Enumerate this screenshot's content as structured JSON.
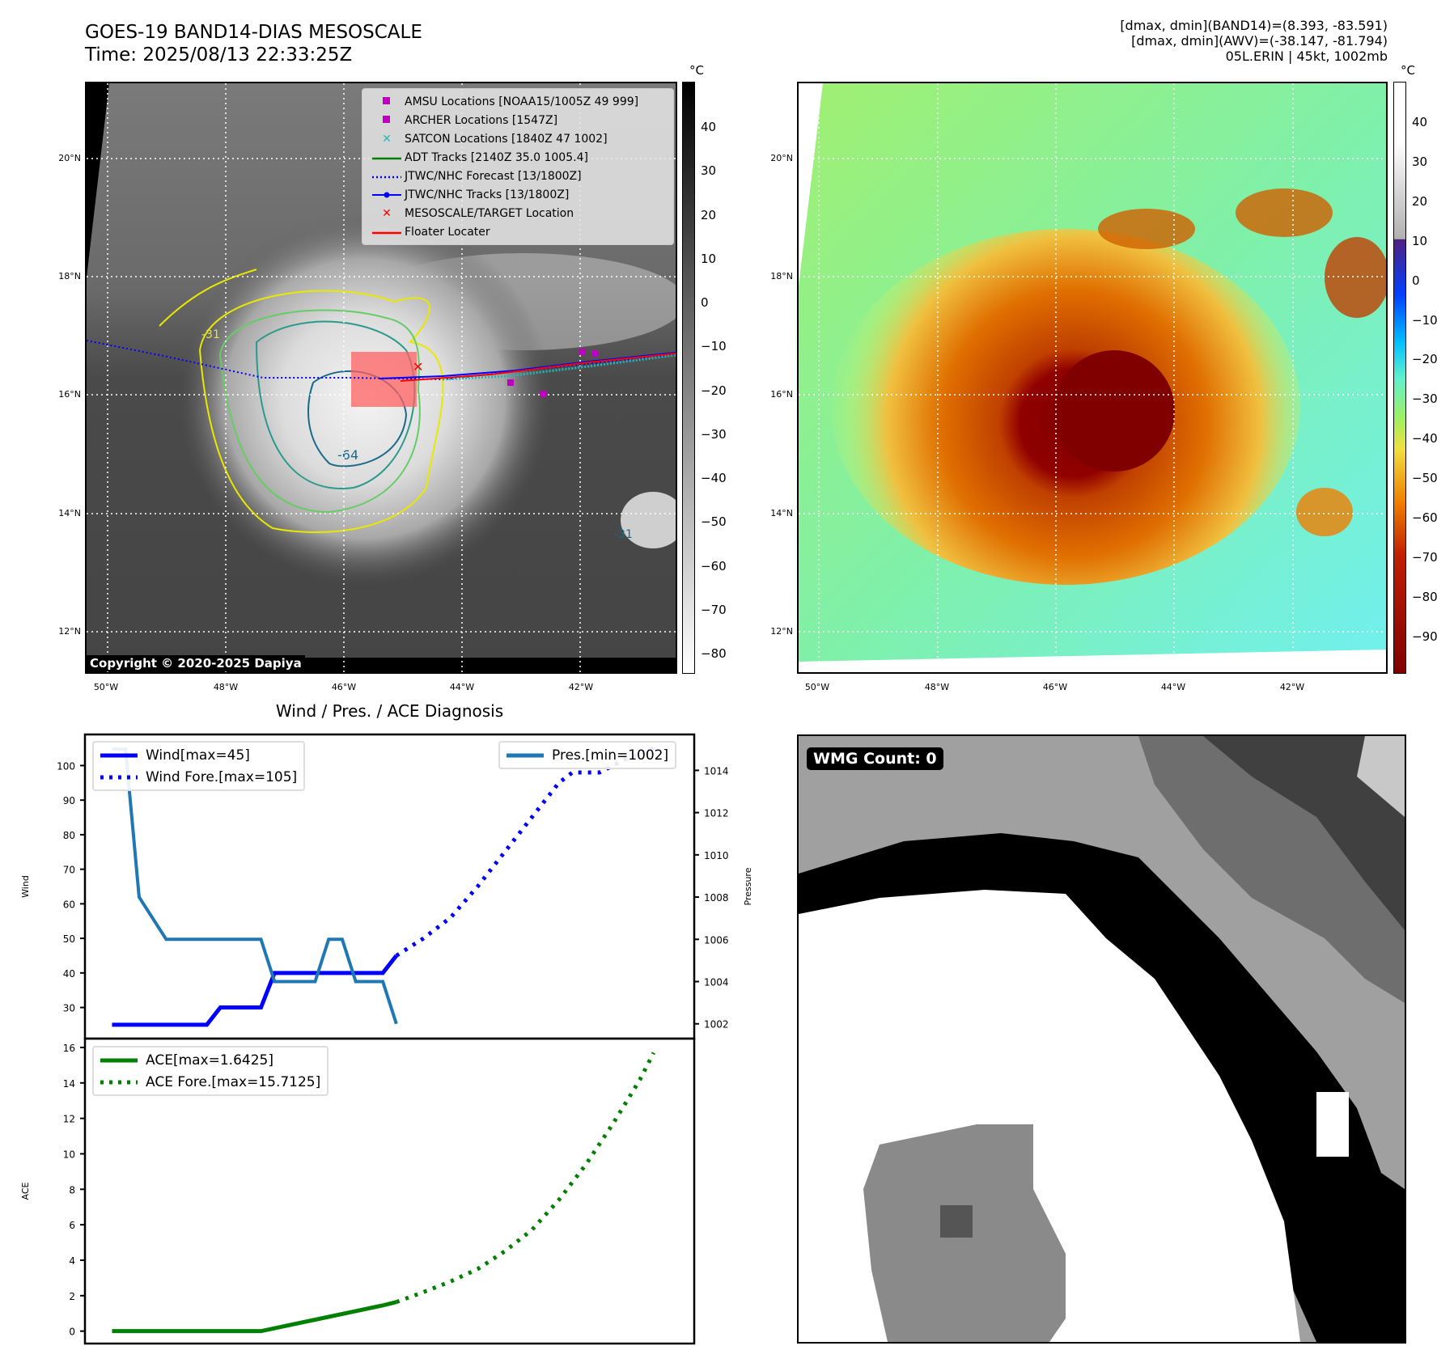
{
  "header": {
    "title": "GOES-19 BAND14-DIAS MESOSCALE",
    "time": "Time: 2025/08/13 22:33:25Z",
    "info": [
      "[dmax, dmin](BAND14)=(8.393, -83.591)",
      "[dmax, dmin](AWV)=(-38.147, -81.794)",
      "05L.ERIN | 45kt, 1002mb"
    ]
  },
  "map1": {
    "lat_labels": [
      "20°N",
      "18°N",
      "16°N",
      "14°N",
      "12°N"
    ],
    "lon_labels": [
      "50°W",
      "48°W",
      "46°W",
      "44°W",
      "42°W"
    ],
    "colorbar_unit": "°C",
    "colorbar_ticks": [
      "40",
      "30",
      "20",
      "10",
      "0",
      "−10",
      "−20",
      "−30",
      "−40",
      "−50",
      "−60",
      "−70",
      "−80"
    ],
    "copyright": "Copyright © 2020-2025 Dapiya",
    "contour_labels": [
      "-31",
      "-64",
      "-31"
    ],
    "legend": [
      {
        "label": "AMSU Locations [NOAA15/1005Z 49 999]",
        "color": "#c000c0",
        "icon": "square-marker"
      },
      {
        "label": "ARCHER Locations [1547Z]",
        "color": "#c000c0",
        "icon": "square-marker"
      },
      {
        "label": "SATCON Locations [1840Z 47 1002]",
        "color": "#20b8b8",
        "icon": "x-marker"
      },
      {
        "label": "ADT Tracks [2140Z 35.0 1005.4]",
        "color": "#008000",
        "icon": "line"
      },
      {
        "label": "JTWC/NHC Forecast [13/1800Z]",
        "color": "#0000ff",
        "icon": "dotted-line"
      },
      {
        "label": "JTWC/NHC Tracks [13/1800Z]",
        "color": "#0000ff",
        "icon": "line-dot"
      },
      {
        "label": "MESOSCALE/TARGET Location",
        "color": "#ff0000",
        "icon": "x-marker"
      },
      {
        "label": "Floater Locater",
        "color": "#ff0000",
        "icon": "line"
      }
    ]
  },
  "map2": {
    "lat_labels": [
      "20°N",
      "18°N",
      "16°N",
      "14°N",
      "12°N"
    ],
    "lon_labels": [
      "50°W",
      "48°W",
      "46°W",
      "44°W",
      "42°W"
    ],
    "colorbar_unit": "°C",
    "colorbar_ticks": [
      "40",
      "30",
      "20",
      "10",
      "0",
      "−10",
      "−20",
      "−30",
      "−40",
      "−50",
      "−60",
      "−70",
      "−80",
      "−90"
    ]
  },
  "chart_data": [
    {
      "type": "line",
      "title": "Wind / Pres. / ACE Diagnosis",
      "ylabel": "Wind",
      "ylim": [
        21,
        109
      ],
      "xlim": [
        -2,
        43
      ],
      "yticks": [
        30,
        40,
        50,
        60,
        70,
        80,
        90,
        100
      ],
      "series": [
        {
          "name": "Wind[max=45]",
          "color": "#0000ff",
          "style": "solid",
          "x": [
            0,
            7,
            8,
            11,
            12,
            20,
            21
          ],
          "y": [
            25,
            25,
            30,
            30,
            40,
            40,
            45
          ]
        },
        {
          "name": "Wind Fore.[max=105]",
          "color": "#0000ff",
          "style": "dotted",
          "x": [
            21,
            23,
            25,
            27,
            29,
            31,
            33,
            34,
            36,
            38,
            40
          ],
          "y": [
            45,
            50,
            56,
            65,
            75,
            85,
            95,
            98,
            98,
            102,
            105
          ]
        }
      ],
      "secondary": {
        "ylabel": "Pressure",
        "ylim": [
          1001.3,
          1015.7
        ],
        "yticks": [
          1002,
          1004,
          1006,
          1008,
          1010,
          1012,
          1014
        ],
        "series": [
          {
            "name": "Pres.[min=1002]",
            "color": "#1f77b4",
            "style": "solid",
            "x": [
              0,
              1,
              2,
              4,
              11,
              12,
              15,
              16,
              17,
              18,
              20,
              21
            ],
            "y": [
              1015,
              1015,
              1008,
              1006,
              1006,
              1004,
              1004,
              1006,
              1006,
              1004,
              1004,
              1002
            ]
          }
        ]
      }
    },
    {
      "type": "line",
      "ylabel": "ACE",
      "ylim": [
        -0.7,
        16.5
      ],
      "xlim": [
        -2,
        43
      ],
      "yticks": [
        0,
        2,
        4,
        6,
        8,
        10,
        12,
        14,
        16
      ],
      "series": [
        {
          "name": "ACE[max=1.6425]",
          "color": "#008000",
          "style": "solid",
          "x": [
            0,
            11,
            20,
            21
          ],
          "y": [
            0,
            0,
            1.45,
            1.64
          ]
        },
        {
          "name": "ACE Fore.[max=15.7125]",
          "color": "#008000",
          "style": "dotted",
          "x": [
            21,
            23,
            25,
            27,
            29,
            31,
            33,
            35,
            37,
            39,
            40
          ],
          "y": [
            1.64,
            2.2,
            2.8,
            3.5,
            4.5,
            5.7,
            7.4,
            9.4,
            11.7,
            14.2,
            15.7
          ]
        }
      ]
    }
  ],
  "wmg": {
    "label": "WMG Count: 0"
  }
}
